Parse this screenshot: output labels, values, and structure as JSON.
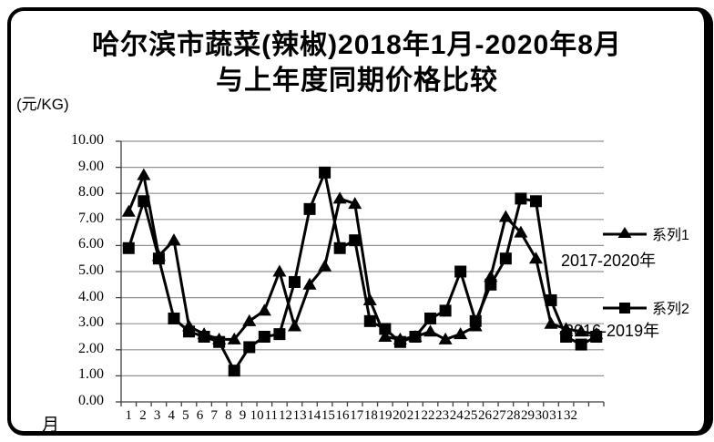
{
  "title": {
    "line1": "哈尔滨市蔬菜(辣椒)2018年1月-2020年8月",
    "line2": "与上年度同期价格比较"
  },
  "unit_label": "(元/KG)",
  "x_axis_title": "月",
  "legend": [
    {
      "label": "系列1",
      "marker": "triangle-marker-icon",
      "annotation": "2017-2020年"
    },
    {
      "label": "系列2",
      "marker": "square-marker-icon",
      "annotation": "2016-2019年"
    }
  ],
  "colors": {
    "series": "#000000",
    "grid": "#919191",
    "axis": "#3f3f3f",
    "background": "#ffffff",
    "border": "#000000"
  },
  "chart_data": {
    "type": "line",
    "title": "哈尔滨市蔬菜(辣椒)2018年1月-2020年8月 与上年度同期价格比较",
    "xlabel": "月",
    "ylabel": "(元/KG)",
    "ylim": [
      0,
      10
    ],
    "grid": true,
    "legend_position": "right",
    "x": [
      "1",
      "2",
      "3",
      "4",
      "5",
      "6",
      "7",
      "8",
      "9",
      "10",
      "11",
      "12",
      "13",
      "14",
      "15",
      "16",
      "17",
      "18",
      "19",
      "20",
      "21",
      "22",
      "23",
      "24",
      "25",
      "26",
      "27",
      "28",
      "29",
      "30",
      "31",
      "32"
    ],
    "ytick_labels": [
      "0.00",
      "1.00",
      "2.00",
      "3.00",
      "4.00",
      "5.00",
      "6.00",
      "7.00",
      "8.00",
      "9.00",
      "10.00"
    ],
    "series": [
      {
        "name": "系列1",
        "period": "2017-2020年",
        "marker": "triangle",
        "color": "#000000",
        "values": [
          7.3,
          8.7,
          5.6,
          6.2,
          2.9,
          2.6,
          2.4,
          2.4,
          3.1,
          3.5,
          5.0,
          2.9,
          4.5,
          5.2,
          7.8,
          7.6,
          3.9,
          2.5,
          2.4,
          2.5,
          2.7,
          2.4,
          2.6,
          2.9,
          4.8,
          7.1,
          6.5,
          5.5,
          3.0,
          2.8,
          2.7,
          2.6
        ]
      },
      {
        "name": "系列2",
        "period": "2016-2019年",
        "marker": "square",
        "color": "#000000",
        "values": [
          5.9,
          7.7,
          5.5,
          3.2,
          2.7,
          2.5,
          2.3,
          1.2,
          2.1,
          2.5,
          2.6,
          4.6,
          7.4,
          8.8,
          5.9,
          6.2,
          3.1,
          2.8,
          2.3,
          2.5,
          3.2,
          3.5,
          5.0,
          3.1,
          4.5,
          5.5,
          7.8,
          7.7,
          3.9,
          2.5,
          2.2,
          2.5
        ]
      }
    ]
  }
}
